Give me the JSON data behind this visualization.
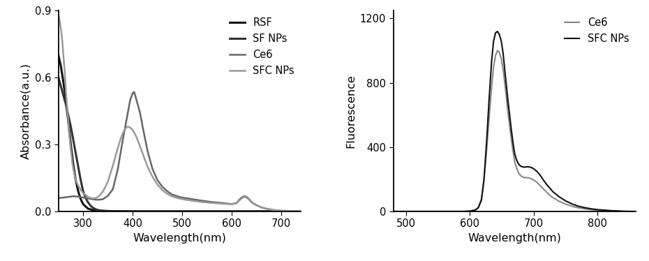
{
  "left_chart": {
    "xlabel": "Wavelength(nm)",
    "ylabel": "Absorbance(a.u.)",
    "xlim": [
      250,
      740
    ],
    "ylim": [
      0,
      0.9
    ],
    "yticks": [
      0,
      0.3,
      0.6,
      0.9
    ],
    "xticks": [
      300,
      400,
      500,
      600,
      700
    ],
    "series": [
      {
        "label": "RSF",
        "color": "#111111",
        "linewidth": 2.2,
        "points": [
          [
            250,
            0.7
          ],
          [
            255,
            0.65
          ],
          [
            260,
            0.58
          ],
          [
            265,
            0.5
          ],
          [
            270,
            0.4
          ],
          [
            275,
            0.3
          ],
          [
            280,
            0.21
          ],
          [
            285,
            0.14
          ],
          [
            290,
            0.09
          ],
          [
            295,
            0.055
          ],
          [
            300,
            0.032
          ],
          [
            310,
            0.012
          ],
          [
            320,
            0.006
          ],
          [
            330,
            0.003
          ],
          [
            340,
            0.002
          ],
          [
            350,
            0.001
          ],
          [
            400,
            0.0
          ],
          [
            500,
            0.0
          ],
          [
            600,
            0.0
          ],
          [
            700,
            0.0
          ],
          [
            740,
            0.0
          ]
        ]
      },
      {
        "label": "SF NPs",
        "color": "#333333",
        "linewidth": 2.2,
        "points": [
          [
            250,
            0.6
          ],
          [
            255,
            0.56
          ],
          [
            260,
            0.52
          ],
          [
            265,
            0.48
          ],
          [
            270,
            0.43
          ],
          [
            275,
            0.38
          ],
          [
            280,
            0.32
          ],
          [
            285,
            0.26
          ],
          [
            290,
            0.2
          ],
          [
            295,
            0.14
          ],
          [
            300,
            0.09
          ],
          [
            305,
            0.06
          ],
          [
            310,
            0.04
          ],
          [
            315,
            0.025
          ],
          [
            320,
            0.016
          ],
          [
            325,
            0.01
          ],
          [
            330,
            0.006
          ],
          [
            340,
            0.003
          ],
          [
            350,
            0.002
          ],
          [
            360,
            0.001
          ],
          [
            400,
            0.0
          ],
          [
            500,
            0.0
          ],
          [
            600,
            0.0
          ],
          [
            700,
            0.0
          ],
          [
            740,
            0.0
          ]
        ]
      },
      {
        "label": "Ce6",
        "color": "#666666",
        "linewidth": 1.8,
        "points": [
          [
            250,
            0.06
          ],
          [
            260,
            0.062
          ],
          [
            270,
            0.065
          ],
          [
            280,
            0.068
          ],
          [
            290,
            0.066
          ],
          [
            300,
            0.062
          ],
          [
            310,
            0.058
          ],
          [
            320,
            0.054
          ],
          [
            330,
            0.052
          ],
          [
            340,
            0.055
          ],
          [
            350,
            0.07
          ],
          [
            360,
            0.1
          ],
          [
            370,
            0.19
          ],
          [
            380,
            0.32
          ],
          [
            390,
            0.44
          ],
          [
            395,
            0.5
          ],
          [
            400,
            0.53
          ],
          [
            403,
            0.535
          ],
          [
            405,
            0.52
          ],
          [
            410,
            0.48
          ],
          [
            415,
            0.44
          ],
          [
            420,
            0.38
          ],
          [
            430,
            0.27
          ],
          [
            440,
            0.19
          ],
          [
            450,
            0.14
          ],
          [
            460,
            0.11
          ],
          [
            470,
            0.09
          ],
          [
            480,
            0.075
          ],
          [
            490,
            0.068
          ],
          [
            500,
            0.062
          ],
          [
            520,
            0.055
          ],
          [
            540,
            0.048
          ],
          [
            560,
            0.042
          ],
          [
            580,
            0.038
          ],
          [
            600,
            0.033
          ],
          [
            610,
            0.038
          ],
          [
            615,
            0.052
          ],
          [
            620,
            0.062
          ],
          [
            625,
            0.068
          ],
          [
            630,
            0.065
          ],
          [
            635,
            0.055
          ],
          [
            640,
            0.042
          ],
          [
            650,
            0.028
          ],
          [
            660,
            0.018
          ],
          [
            670,
            0.012
          ],
          [
            680,
            0.008
          ],
          [
            690,
            0.005
          ],
          [
            700,
            0.003
          ],
          [
            720,
            0.002
          ],
          [
            740,
            0.001
          ]
        ]
      },
      {
        "label": "SFC NPs",
        "color": "#999999",
        "linewidth": 1.8,
        "points": [
          [
            250,
            0.88
          ],
          [
            252,
            0.86
          ],
          [
            255,
            0.82
          ],
          [
            258,
            0.76
          ],
          [
            260,
            0.7
          ],
          [
            263,
            0.62
          ],
          [
            265,
            0.54
          ],
          [
            268,
            0.46
          ],
          [
            270,
            0.4
          ],
          [
            272,
            0.34
          ],
          [
            275,
            0.28
          ],
          [
            278,
            0.22
          ],
          [
            280,
            0.19
          ],
          [
            283,
            0.16
          ],
          [
            285,
            0.14
          ],
          [
            288,
            0.125
          ],
          [
            290,
            0.115
          ],
          [
            293,
            0.105
          ],
          [
            295,
            0.095
          ],
          [
            300,
            0.082
          ],
          [
            305,
            0.073
          ],
          [
            310,
            0.065
          ],
          [
            315,
            0.06
          ],
          [
            320,
            0.058
          ],
          [
            325,
            0.06
          ],
          [
            330,
            0.065
          ],
          [
            335,
            0.075
          ],
          [
            340,
            0.09
          ],
          [
            345,
            0.11
          ],
          [
            350,
            0.135
          ],
          [
            355,
            0.17
          ],
          [
            360,
            0.205
          ],
          [
            365,
            0.245
          ],
          [
            370,
            0.285
          ],
          [
            375,
            0.32
          ],
          [
            380,
            0.35
          ],
          [
            385,
            0.37
          ],
          [
            390,
            0.38
          ],
          [
            395,
            0.375
          ],
          [
            400,
            0.365
          ],
          [
            405,
            0.345
          ],
          [
            410,
            0.32
          ],
          [
            415,
            0.29
          ],
          [
            420,
            0.26
          ],
          [
            430,
            0.2
          ],
          [
            440,
            0.155
          ],
          [
            450,
            0.12
          ],
          [
            460,
            0.095
          ],
          [
            470,
            0.078
          ],
          [
            480,
            0.067
          ],
          [
            490,
            0.06
          ],
          [
            500,
            0.055
          ],
          [
            520,
            0.048
          ],
          [
            540,
            0.042
          ],
          [
            560,
            0.038
          ],
          [
            580,
            0.035
          ],
          [
            600,
            0.032
          ],
          [
            610,
            0.037
          ],
          [
            615,
            0.048
          ],
          [
            620,
            0.058
          ],
          [
            625,
            0.065
          ],
          [
            630,
            0.062
          ],
          [
            635,
            0.052
          ],
          [
            640,
            0.04
          ],
          [
            650,
            0.027
          ],
          [
            660,
            0.018
          ],
          [
            670,
            0.012
          ],
          [
            680,
            0.008
          ],
          [
            690,
            0.005
          ],
          [
            700,
            0.003
          ],
          [
            720,
            0.002
          ],
          [
            740,
            0.001
          ]
        ]
      }
    ],
    "legend_labels": [
      "RSF",
      "SF NPs",
      "Ce6",
      "SFC NPs"
    ],
    "legend_colors": [
      "#111111",
      "#333333",
      "#666666",
      "#999999"
    ],
    "legend_linewidths": [
      2.2,
      2.2,
      1.8,
      1.8
    ]
  },
  "right_chart": {
    "xlabel": "Wavelength(nm)",
    "ylabel": "Fluorescence",
    "xlim": [
      480,
      860
    ],
    "ylim": [
      0,
      1250
    ],
    "yticks": [
      0,
      400,
      800,
      1200
    ],
    "xticks": [
      500,
      600,
      700,
      800
    ],
    "series": [
      {
        "label": "Ce6",
        "color": "#888888",
        "linewidth": 1.5,
        "points": [
          [
            480,
            0
          ],
          [
            500,
            0
          ],
          [
            520,
            0
          ],
          [
            540,
            0
          ],
          [
            560,
            0
          ],
          [
            580,
            0
          ],
          [
            590,
            0
          ],
          [
            600,
            2
          ],
          [
            608,
            8
          ],
          [
            613,
            25
          ],
          [
            618,
            80
          ],
          [
            622,
            200
          ],
          [
            626,
            380
          ],
          [
            630,
            580
          ],
          [
            634,
            780
          ],
          [
            637,
            900
          ],
          [
            640,
            970
          ],
          [
            643,
            1000
          ],
          [
            646,
            990
          ],
          [
            649,
            950
          ],
          [
            652,
            880
          ],
          [
            655,
            780
          ],
          [
            660,
            600
          ],
          [
            665,
            440
          ],
          [
            668,
            360
          ],
          [
            670,
            310
          ],
          [
            673,
            270
          ],
          [
            676,
            240
          ],
          [
            680,
            220
          ],
          [
            685,
            210
          ],
          [
            690,
            210
          ],
          [
            695,
            205
          ],
          [
            700,
            195
          ],
          [
            705,
            180
          ],
          [
            710,
            160
          ],
          [
            715,
            140
          ],
          [
            720,
            120
          ],
          [
            725,
            100
          ],
          [
            730,
            85
          ],
          [
            740,
            62
          ],
          [
            750,
            45
          ],
          [
            760,
            32
          ],
          [
            770,
            22
          ],
          [
            780,
            16
          ],
          [
            790,
            11
          ],
          [
            800,
            8
          ],
          [
            810,
            5
          ],
          [
            820,
            3
          ],
          [
            830,
            2
          ],
          [
            840,
            1
          ],
          [
            850,
            0
          ],
          [
            860,
            0
          ]
        ]
      },
      {
        "label": "SFC NPs",
        "color": "#111111",
        "linewidth": 1.5,
        "points": [
          [
            480,
            0
          ],
          [
            500,
            0
          ],
          [
            520,
            0
          ],
          [
            540,
            0
          ],
          [
            560,
            0
          ],
          [
            580,
            0
          ],
          [
            590,
            0
          ],
          [
            600,
            2
          ],
          [
            608,
            8
          ],
          [
            613,
            22
          ],
          [
            618,
            70
          ],
          [
            622,
            200
          ],
          [
            626,
            430
          ],
          [
            630,
            700
          ],
          [
            634,
            940
          ],
          [
            637,
            1060
          ],
          [
            640,
            1110
          ],
          [
            643,
            1120
          ],
          [
            646,
            1100
          ],
          [
            649,
            1060
          ],
          [
            652,
            980
          ],
          [
            655,
            860
          ],
          [
            660,
            670
          ],
          [
            665,
            500
          ],
          [
            668,
            410
          ],
          [
            670,
            360
          ],
          [
            673,
            320
          ],
          [
            676,
            295
          ],
          [
            680,
            280
          ],
          [
            685,
            275
          ],
          [
            690,
            278
          ],
          [
            695,
            275
          ],
          [
            700,
            265
          ],
          [
            705,
            248
          ],
          [
            710,
            225
          ],
          [
            715,
            195
          ],
          [
            720,
            168
          ],
          [
            725,
            145
          ],
          [
            730,
            122
          ],
          [
            740,
            90
          ],
          [
            750,
            65
          ],
          [
            760,
            46
          ],
          [
            770,
            32
          ],
          [
            780,
            23
          ],
          [
            790,
            16
          ],
          [
            800,
            11
          ],
          [
            810,
            8
          ],
          [
            820,
            5
          ],
          [
            830,
            3
          ],
          [
            840,
            1
          ],
          [
            850,
            0
          ],
          [
            860,
            0
          ]
        ]
      }
    ],
    "legend_labels": [
      "Ce6",
      "SFC NPs"
    ],
    "legend_colors": [
      "#888888",
      "#111111"
    ],
    "legend_linewidths": [
      1.5,
      1.5
    ]
  }
}
